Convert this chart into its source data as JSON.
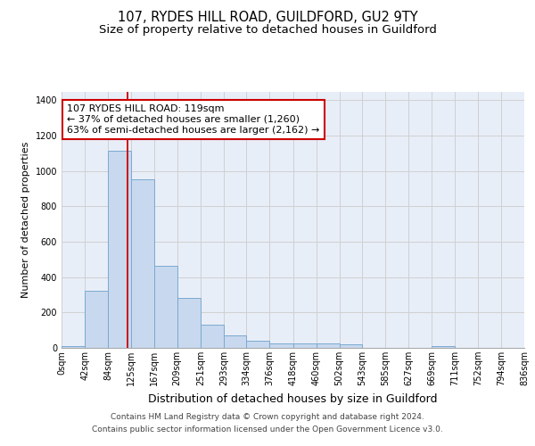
{
  "title": "107, RYDES HILL ROAD, GUILDFORD, GU2 9TY",
  "subtitle": "Size of property relative to detached houses in Guildford",
  "xlabel": "Distribution of detached houses by size in Guildford",
  "ylabel": "Number of detached properties",
  "bin_edges": [
    0,
    42,
    84,
    125,
    167,
    209,
    251,
    293,
    334,
    376,
    418,
    460,
    502,
    543,
    585,
    627,
    669,
    711,
    752,
    794,
    836
  ],
  "bar_heights": [
    10,
    325,
    1115,
    955,
    462,
    280,
    130,
    70,
    42,
    25,
    27,
    25,
    18,
    0,
    0,
    0,
    12,
    0,
    0,
    0
  ],
  "bar_color": "#c8d8ee",
  "bar_edge_color": "#7aaad0",
  "grid_color": "#d0d0d0",
  "background_color": "#e8eef8",
  "vline_x": 119,
  "vline_color": "#cc0000",
  "annotation_line1": "107 RYDES HILL ROAD: 119sqm",
  "annotation_line2": "← 37% of detached houses are smaller (1,260)",
  "annotation_line3": "63% of semi-detached houses are larger (2,162) →",
  "annotation_box_color": "#cc0000",
  "ylim": [
    0,
    1450
  ],
  "yticks": [
    0,
    200,
    400,
    600,
    800,
    1000,
    1200,
    1400
  ],
  "tick_labels": [
    "0sqm",
    "42sqm",
    "84sqm",
    "125sqm",
    "167sqm",
    "209sqm",
    "251sqm",
    "293sqm",
    "334sqm",
    "376sqm",
    "418sqm",
    "460sqm",
    "502sqm",
    "543sqm",
    "585sqm",
    "627sqm",
    "669sqm",
    "711sqm",
    "752sqm",
    "794sqm",
    "836sqm"
  ],
  "footer_line1": "Contains HM Land Registry data © Crown copyright and database right 2024.",
  "footer_line2": "Contains public sector information licensed under the Open Government Licence v3.0.",
  "title_fontsize": 10.5,
  "subtitle_fontsize": 9.5,
  "xlabel_fontsize": 9,
  "ylabel_fontsize": 8,
  "tick_fontsize": 7,
  "annotation_fontsize": 8,
  "footer_fontsize": 6.5
}
